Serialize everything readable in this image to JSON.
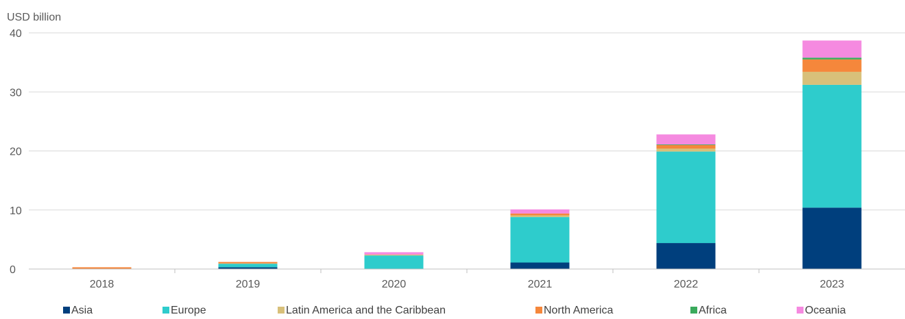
{
  "chart_data": {
    "type": "bar",
    "stacked": true,
    "unit_label": "USD billion",
    "categories": [
      "2018",
      "2019",
      "2020",
      "2021",
      "2022",
      "2023"
    ],
    "ylim": [
      0,
      40
    ],
    "yticks": [
      0,
      10,
      20,
      30,
      40
    ],
    "grid": true,
    "legend_position": "bottom",
    "series": [
      {
        "name": "Asia",
        "color": "#003f7d",
        "values": [
          0,
          0.3,
          0,
          1.1,
          4.4,
          10.4
        ]
      },
      {
        "name": "Europe",
        "color": "#2ecccc",
        "values": [
          0,
          0.6,
          2.3,
          7.7,
          15.5,
          20.8
        ]
      },
      {
        "name": "Latin America and the Caribbean",
        "color": "#d8c07a",
        "values": [
          0,
          0.05,
          0.1,
          0.3,
          0.5,
          2.2
        ]
      },
      {
        "name": "North America",
        "color": "#f5873b",
        "values": [
          0.3,
          0.25,
          0.05,
          0.3,
          0.6,
          2.1
        ]
      },
      {
        "name": "Africa",
        "color": "#3aaa5c",
        "values": [
          0,
          0,
          0,
          0,
          0.1,
          0.3
        ]
      },
      {
        "name": "Oceania",
        "color": "#f58ae0",
        "values": [
          0,
          0,
          0.4,
          0.7,
          1.7,
          2.9
        ]
      }
    ]
  }
}
